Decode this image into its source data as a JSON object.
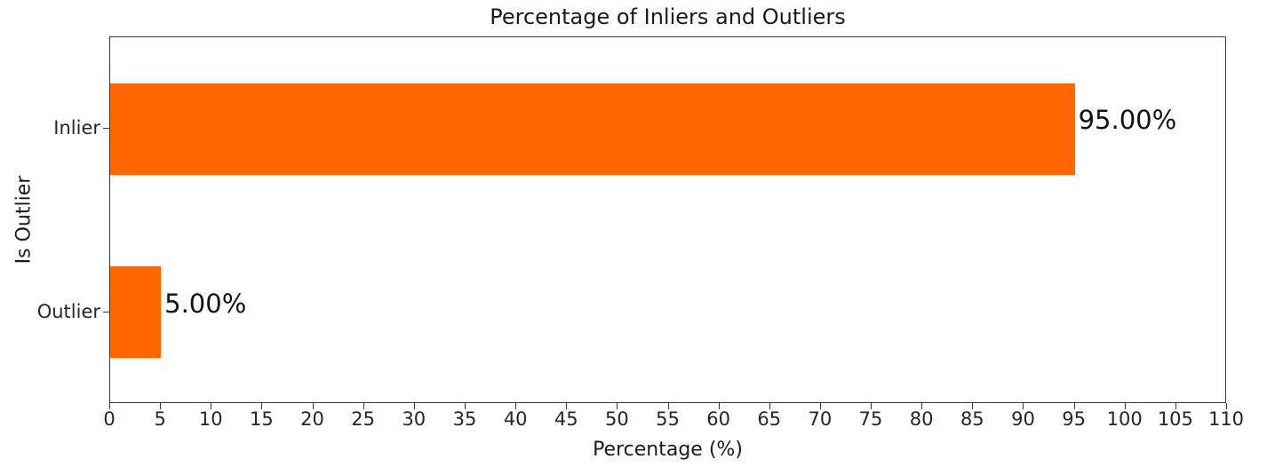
{
  "chart_data": {
    "type": "bar",
    "orientation": "horizontal",
    "title": "Percentage of Inliers and Outliers",
    "xlabel": "Percentage (%)",
    "ylabel": "Is Outlier",
    "categories": [
      "Inlier",
      "Outlier"
    ],
    "values": [
      95.0,
      5.0
    ],
    "bar_labels": [
      "95.00%",
      "5.00%"
    ],
    "xlim": [
      0,
      110
    ],
    "xticks": [
      0,
      5,
      10,
      15,
      20,
      25,
      30,
      35,
      40,
      45,
      50,
      55,
      60,
      65,
      70,
      75,
      80,
      85,
      90,
      95,
      100,
      105,
      110
    ],
    "grid": false,
    "legend": false,
    "bar_color": "#FF6600",
    "spine_color": "#3a3a3a",
    "text_color": "#1a1a1a"
  }
}
